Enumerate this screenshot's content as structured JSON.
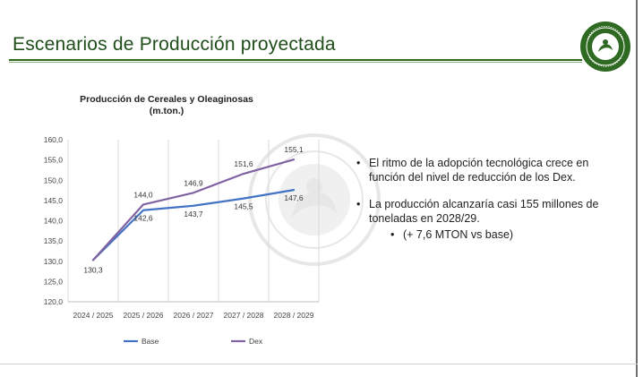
{
  "slide": {
    "title": "Escenarios de Producción proyectada",
    "bullets": [
      {
        "text": "El ritmo de la adopción tecnológica crece en función del nivel de reducción de los Dex."
      },
      {
        "text": "La producción alcanzaría casi 155 millones de toneladas en 2028/29.",
        "sub": "(+ 7,6 MTON vs base)"
      }
    ],
    "colors": {
      "title": "#1f4e1a",
      "accent": "#2e6b1f"
    }
  },
  "chart_data": {
    "type": "line",
    "title": "Producción de Cereales y Oleaginosas",
    "subtitle": "(m.ton.)",
    "categories": [
      "2024 / 2025",
      "2025 / 2026",
      "2026 / 2027",
      "2027 / 2028",
      "2028 / 2029"
    ],
    "ylim": [
      120,
      160
    ],
    "yticks": [
      "120,0",
      "125,0",
      "130,0",
      "135,0",
      "140,0",
      "145,0",
      "150,0",
      "155,0",
      "160,0"
    ],
    "grid": "vertical",
    "legend_position": "bottom",
    "series": [
      {
        "name": "Base",
        "color": "#4472c4",
        "values": [
          130.3,
          142.6,
          143.7,
          145.5,
          147.6
        ],
        "labels": [
          "130,3",
          "142,6",
          "143,7",
          "145,5",
          "147,6"
        ]
      },
      {
        "name": "Dex",
        "color": "#8064a2",
        "values": [
          130.3,
          144.0,
          146.9,
          151.6,
          155.1
        ],
        "labels": [
          "",
          "144,0",
          "146,9",
          "151,6",
          "155,1"
        ]
      }
    ]
  }
}
